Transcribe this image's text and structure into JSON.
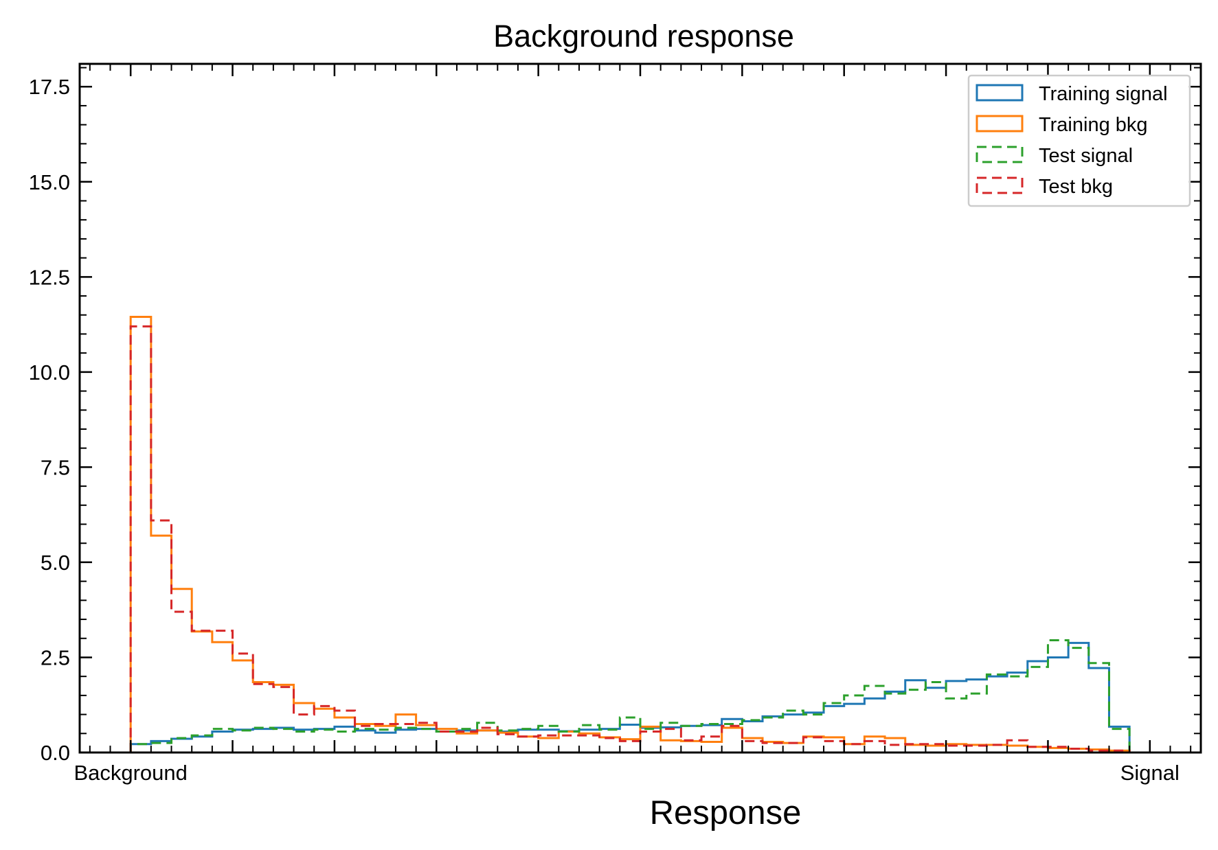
{
  "chart_data": {
    "type": "histogram",
    "title": "Background response",
    "xlabel": "Response",
    "ylabel": "",
    "xlim": [
      -0.05,
      1.05
    ],
    "ylim": [
      0,
      18.1
    ],
    "x_tick_labels": [
      {
        "x": 0.0,
        "label": "Background"
      },
      {
        "x": 1.0,
        "label": "Signal"
      }
    ],
    "y_ticks": [
      0.0,
      2.5,
      5.0,
      7.5,
      10.0,
      12.5,
      15.0,
      17.5
    ],
    "y_tick_labels": [
      "0.0",
      "2.5",
      "5.0",
      "7.5",
      "10.0",
      "12.5",
      "15.0",
      "17.5"
    ],
    "grid": false,
    "legend_position": "top-right",
    "bins": {
      "start": 0.0,
      "width": 0.02,
      "count": 50
    },
    "series": [
      {
        "name": "Training signal",
        "color": "#1f77b4",
        "dashed": false,
        "values": [
          0.22,
          0.3,
          0.36,
          0.42,
          0.55,
          0.6,
          0.62,
          0.65,
          0.6,
          0.62,
          0.68,
          0.58,
          0.52,
          0.6,
          0.62,
          0.55,
          0.58,
          0.58,
          0.55,
          0.6,
          0.6,
          0.56,
          0.6,
          0.62,
          0.73,
          0.65,
          0.66,
          0.7,
          0.72,
          0.88,
          0.82,
          0.95,
          1.0,
          1.05,
          1.22,
          1.28,
          1.42,
          1.6,
          1.9,
          1.7,
          1.88,
          1.92,
          2.0,
          2.1,
          2.4,
          2.5,
          2.88,
          2.22,
          0.68,
          0.0
        ]
      },
      {
        "name": "Training bkg",
        "color": "#ff7f0e",
        "dashed": false,
        "values": [
          11.45,
          5.7,
          4.3,
          3.18,
          2.9,
          2.42,
          1.85,
          1.78,
          1.3,
          1.15,
          0.92,
          0.75,
          0.7,
          1.0,
          0.72,
          0.62,
          0.5,
          0.58,
          0.52,
          0.42,
          0.38,
          0.55,
          0.5,
          0.4,
          0.35,
          0.68,
          0.32,
          0.3,
          0.28,
          0.65,
          0.38,
          0.28,
          0.25,
          0.42,
          0.4,
          0.22,
          0.42,
          0.38,
          0.2,
          0.18,
          0.22,
          0.2,
          0.2,
          0.18,
          0.15,
          0.12,
          0.1,
          0.08,
          0.05,
          0.0
        ]
      },
      {
        "name": "Test signal",
        "color": "#2ca02c",
        "dashed": true,
        "values": [
          0.22,
          0.25,
          0.38,
          0.45,
          0.62,
          0.58,
          0.65,
          0.62,
          0.55,
          0.6,
          0.55,
          0.62,
          0.6,
          0.65,
          0.62,
          0.55,
          0.62,
          0.78,
          0.58,
          0.62,
          0.7,
          0.55,
          0.72,
          0.6,
          0.92,
          0.62,
          0.78,
          0.7,
          0.75,
          0.75,
          0.85,
          0.92,
          1.1,
          1.0,
          1.3,
          1.5,
          1.75,
          1.55,
          1.65,
          1.85,
          1.42,
          1.55,
          2.05,
          2.0,
          2.25,
          2.95,
          2.75,
          2.35,
          0.62,
          0.0
        ]
      },
      {
        "name": "Test bkg",
        "color": "#d62728",
        "dashed": true,
        "values": [
          11.2,
          6.1,
          3.7,
          3.2,
          3.2,
          2.6,
          1.8,
          1.72,
          1.0,
          1.22,
          1.1,
          0.7,
          0.75,
          0.75,
          0.78,
          0.55,
          0.55,
          0.65,
          0.48,
          0.42,
          0.45,
          0.45,
          0.45,
          0.38,
          0.3,
          0.55,
          0.62,
          0.32,
          0.42,
          0.7,
          0.3,
          0.25,
          0.25,
          0.4,
          0.3,
          0.22,
          0.3,
          0.2,
          0.22,
          0.22,
          0.18,
          0.18,
          0.2,
          0.32,
          0.15,
          0.15,
          0.1,
          0.05,
          0.05,
          0.0
        ]
      }
    ]
  }
}
